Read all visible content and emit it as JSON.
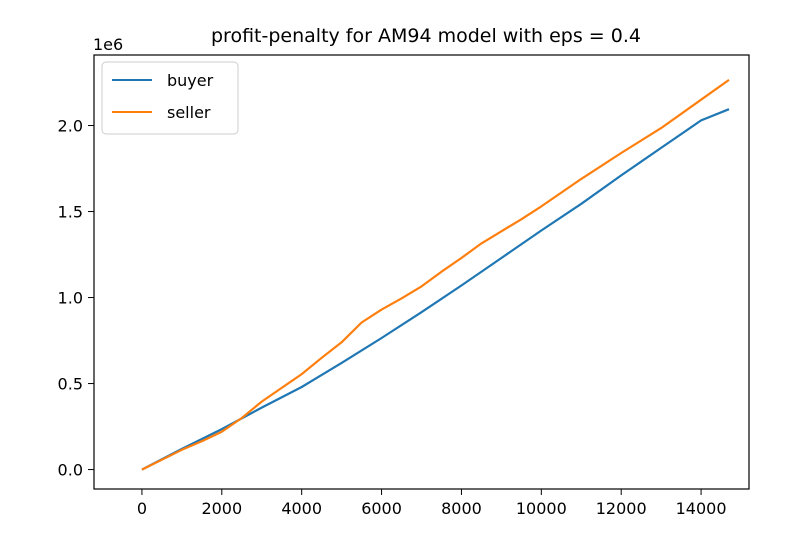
{
  "chart_data": {
    "type": "line",
    "title": "profit-penalty for AM94 model with eps = 0.4",
    "xlabel": "",
    "ylabel": "",
    "y_offset_label": "1e6",
    "xlim": [
      -1200,
      15200
    ],
    "ylim": [
      -0.113,
      2.41
    ],
    "x_ticks": [
      0,
      2000,
      4000,
      6000,
      8000,
      10000,
      12000,
      14000
    ],
    "x_tick_labels": [
      "0",
      "2000",
      "4000",
      "6000",
      "8000",
      "10000",
      "12000",
      "14000"
    ],
    "y_ticks": [
      0.0,
      0.5,
      1.0,
      1.5,
      2.0
    ],
    "y_tick_labels": [
      "0.0",
      "0.5",
      "1.0",
      "1.5",
      "2.0"
    ],
    "grid": false,
    "legend_position": "top-left",
    "series": [
      {
        "name": "buyer",
        "color": "#1f77b4",
        "points": [
          [
            0,
            0.0
          ],
          [
            1000,
            0.12
          ],
          [
            2000,
            0.235
          ],
          [
            3000,
            0.36
          ],
          [
            4000,
            0.48
          ],
          [
            5000,
            0.62
          ],
          [
            6000,
            0.765
          ],
          [
            7000,
            0.915
          ],
          [
            8000,
            1.07
          ],
          [
            9000,
            1.23
          ],
          [
            10000,
            1.39
          ],
          [
            11000,
            1.545
          ],
          [
            12000,
            1.71
          ],
          [
            13000,
            1.87
          ],
          [
            14000,
            2.03
          ],
          [
            14700,
            2.095
          ]
        ]
      },
      {
        "name": "seller",
        "color": "#ff7f0e",
        "points": [
          [
            0,
            0.0
          ],
          [
            1000,
            0.115
          ],
          [
            1500,
            0.165
          ],
          [
            2000,
            0.22
          ],
          [
            2500,
            0.3
          ],
          [
            3000,
            0.395
          ],
          [
            3500,
            0.475
          ],
          [
            4000,
            0.555
          ],
          [
            4500,
            0.65
          ],
          [
            5000,
            0.74
          ],
          [
            5500,
            0.855
          ],
          [
            6000,
            0.93
          ],
          [
            6500,
            0.995
          ],
          [
            7000,
            1.065
          ],
          [
            7500,
            1.15
          ],
          [
            8000,
            1.23
          ],
          [
            8500,
            1.315
          ],
          [
            9000,
            1.385
          ],
          [
            9500,
            1.455
          ],
          [
            10000,
            1.53
          ],
          [
            11000,
            1.69
          ],
          [
            12000,
            1.84
          ],
          [
            13000,
            1.985
          ],
          [
            14000,
            2.15
          ],
          [
            14700,
            2.265
          ]
        ]
      }
    ]
  }
}
